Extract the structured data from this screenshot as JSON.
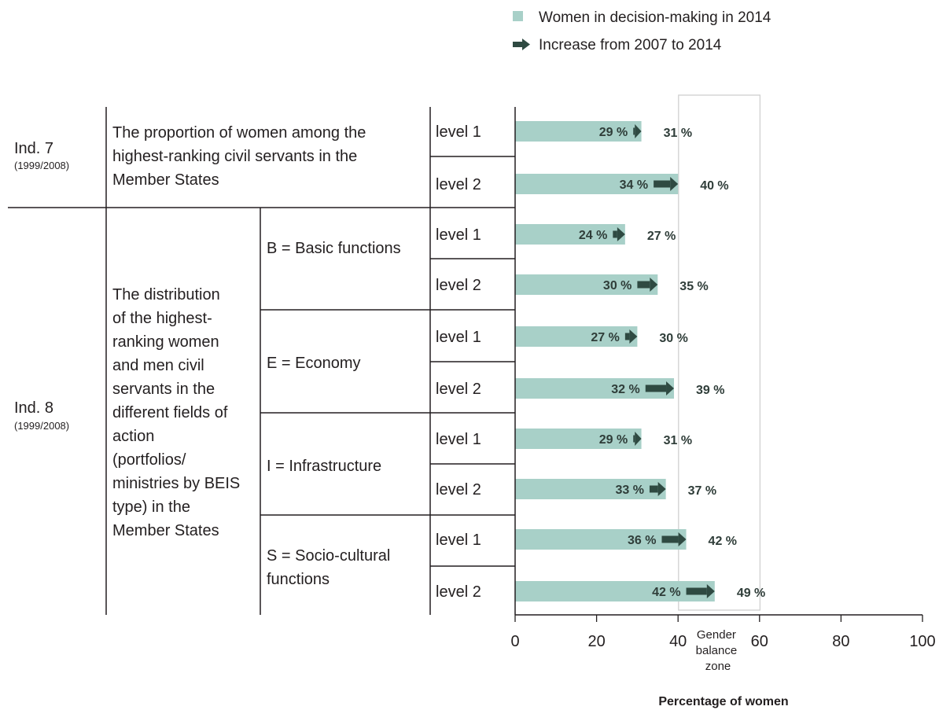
{
  "legend": {
    "bar_label": "Women in decision-making in 2014",
    "arrow_label": "Increase from 2007 to 2014"
  },
  "colors": {
    "bar": "#a8d0c8",
    "arrow": "#2f4a42",
    "lines": "#231f20",
    "zone_border": "#d0d0d0"
  },
  "indicators": [
    {
      "name": "Ind. 7",
      "years": "(1999/2008)",
      "description_lines": [
        "The proportion of women among the",
        "highest-ranking civil servants in the",
        "Member States"
      ]
    },
    {
      "name": "Ind. 8",
      "years": "(1999/2008)",
      "description_lines": [
        "The distribution",
        "of the highest-",
        "ranking women",
        "and men civil",
        "servants in the",
        "different fields of",
        "action",
        "(portfolios/",
        "ministries by BEIS",
        "type) in the",
        "Member States"
      ]
    }
  ],
  "groups": [
    {
      "lines": [
        "B = Basic functions"
      ]
    },
    {
      "lines": [
        "E = Economy"
      ]
    },
    {
      "lines": [
        "I = Infrastructure"
      ]
    },
    {
      "lines": [
        "S = Socio-cultural",
        "functions"
      ]
    }
  ],
  "gender_balance_zone": {
    "range": [
      40,
      60
    ],
    "label_lines": [
      "Gender",
      "balance",
      "zone"
    ]
  },
  "chart_data": {
    "type": "bar",
    "orientation": "horizontal",
    "categories": [
      "level 1",
      "level 2",
      "level 1",
      "level 2",
      "level 1",
      "level 2",
      "level 1",
      "level 2",
      "level 1",
      "level 2"
    ],
    "series": [
      {
        "name": "Women in decision-making in 2014",
        "values": [
          31,
          40,
          27,
          35,
          30,
          39,
          31,
          37,
          42,
          49
        ]
      },
      {
        "name": "Increase from 2007 to 2014",
        "start_values": [
          29,
          34,
          24,
          30,
          27,
          32,
          29,
          33,
          36,
          42
        ],
        "end_values": [
          31,
          40,
          27,
          35,
          30,
          39,
          31,
          37,
          42,
          49
        ]
      }
    ],
    "start_labels": [
      "29 %",
      "34 %",
      "24 %",
      "30 %",
      "27 %",
      "32 %",
      "29 %",
      "33 %",
      "36 %",
      "42 %"
    ],
    "end_labels": [
      "31 %",
      "40 %",
      "27 %",
      "35 %",
      "30 %",
      "39 %",
      "31 %",
      "37 %",
      "42 %",
      "49 %"
    ],
    "xlim": [
      0,
      100
    ],
    "xticks": [
      0,
      20,
      40,
      60,
      80,
      100
    ],
    "xlabel": "Percentage of women",
    "legend_position": "top-right",
    "grid": false
  }
}
